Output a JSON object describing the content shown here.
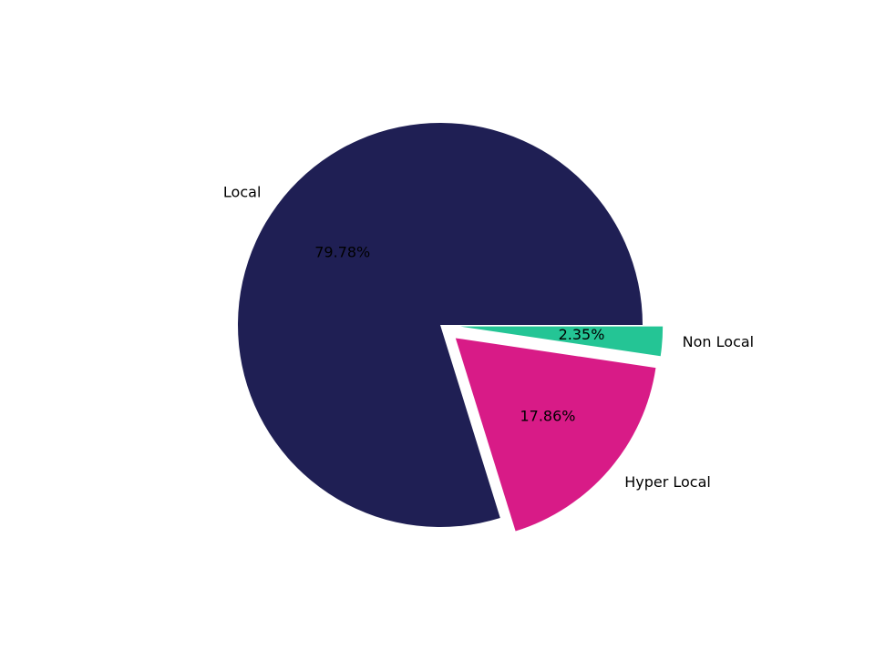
{
  "chart_data": {
    "type": "pie",
    "categories": [
      "Local",
      "Hyper Local",
      "Non Local"
    ],
    "values": [
      79.78,
      17.86,
      2.35
    ],
    "value_labels": [
      "79.78%",
      "17.86%",
      "2.35%"
    ],
    "colors": [
      "#1f1f54",
      "#d81b87",
      "#24c595"
    ],
    "explode": [
      0,
      0.1,
      0.1
    ]
  }
}
